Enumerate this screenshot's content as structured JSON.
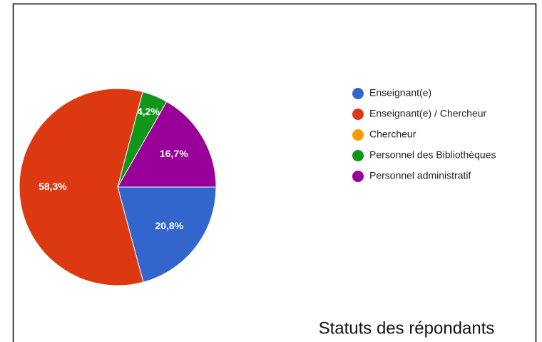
{
  "chart_data": {
    "type": "pie",
    "caption": "Statuts des répondants",
    "categories": [
      "Enseignant(e)",
      "Enseignant(e) / Chercheur",
      "Chercheur",
      "Personnel des Bibliothèques",
      "Personnel administratif"
    ],
    "values": [
      20.8,
      58.3,
      0,
      4.2,
      16.7
    ],
    "value_labels": [
      "20,8%",
      "58,3%",
      null,
      "4,2%",
      "16,7%"
    ],
    "colors": [
      "#3366cc",
      "#dc3912",
      "#ff9900",
      "#109618",
      "#990099"
    ],
    "legend": "right"
  }
}
